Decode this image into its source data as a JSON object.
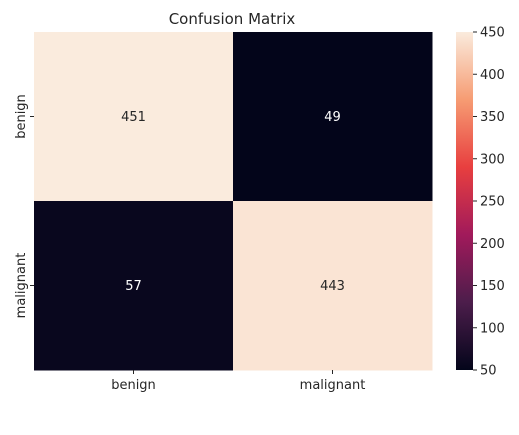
{
  "chart_data": {
    "type": "heatmap",
    "title": "Confusion Matrix",
    "x_categories": [
      "benign",
      "malignant"
    ],
    "y_categories": [
      "benign",
      "malignant"
    ],
    "values": [
      [
        451,
        49
      ],
      [
        57,
        443
      ]
    ],
    "colorbar": {
      "min": 50,
      "max": 450,
      "ticks": [
        50,
        100,
        150,
        200,
        250,
        300,
        350,
        400,
        450
      ],
      "colormap": "rocket",
      "colors": [
        "#03051a",
        "#4c1d4b",
        "#a11a5b",
        "#e83f3f",
        "#f69c73",
        "#faebdd"
      ]
    },
    "xlabel": "",
    "ylabel": ""
  }
}
